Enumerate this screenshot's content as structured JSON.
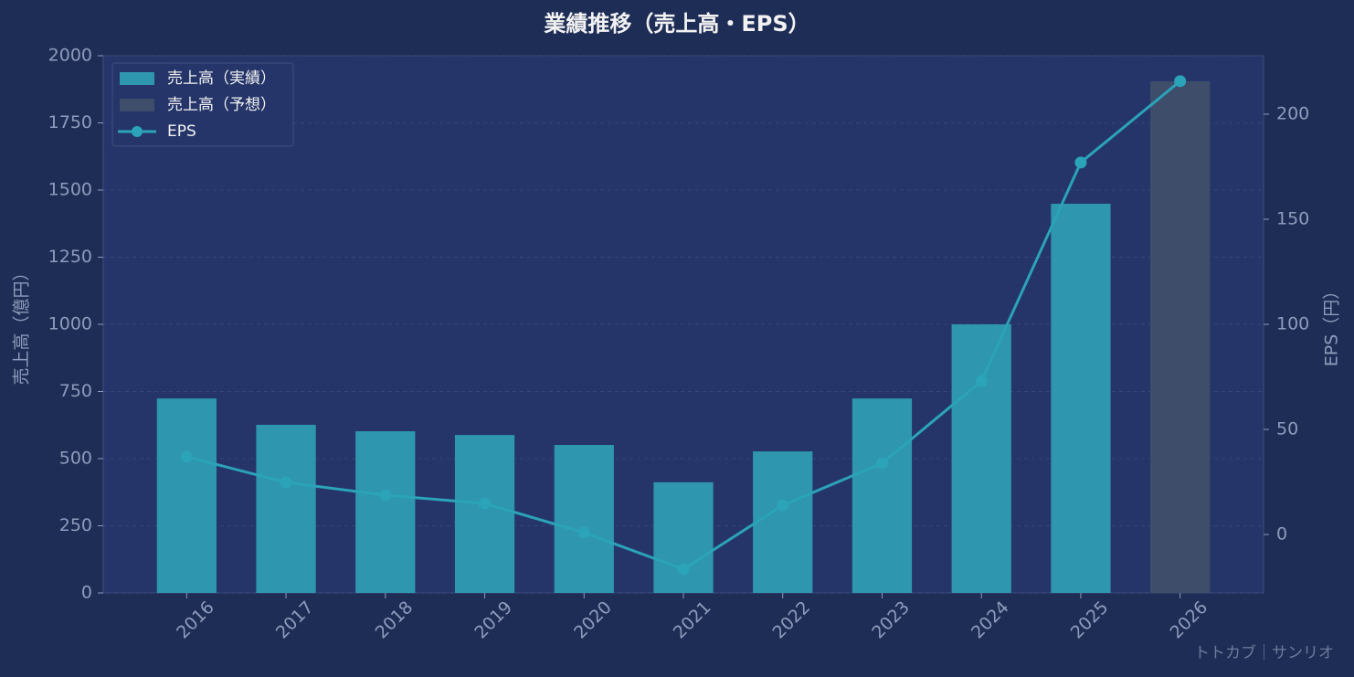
{
  "chart_data": {
    "type": "bar-line",
    "title": "業績推移（売上高・EPS）",
    "y_label": "売上高（億円）",
    "y2_label": "EPS（円）",
    "watermark": "トトカブ｜サンリオ",
    "categories": [
      "2016",
      "2017",
      "2018",
      "2019",
      "2020",
      "2021",
      "2022",
      "2023",
      "2024",
      "2025",
      "2026"
    ],
    "series": [
      {
        "name": "売上高（実績）",
        "type": "bar",
        "color": "#2e96ae",
        "values": [
          724,
          626,
          602,
          588,
          551,
          412,
          527,
          724,
          1000,
          1449,
          null
        ]
      },
      {
        "name": "売上高（予想）",
        "type": "bar",
        "color": "#3d4d6a",
        "values": [
          null,
          null,
          null,
          null,
          null,
          null,
          null,
          null,
          null,
          null,
          1905
        ]
      },
      {
        "name": "EPS",
        "type": "line",
        "axis": "y2",
        "color": "#2ba3b8",
        "values": [
          37,
          24.8,
          18.7,
          14.8,
          0.9,
          -16.5,
          13.9,
          33.9,
          73,
          177,
          215.7
        ]
      }
    ],
    "ylim": [
      0,
      2000
    ],
    "yticks": [
      0,
      250,
      500,
      750,
      1000,
      1250,
      1500,
      1750,
      2000
    ],
    "y2lim": [
      -27.8,
      227.8
    ],
    "y2ticks": [
      0,
      50,
      100,
      150,
      200
    ],
    "grid": true,
    "legend": "upper-left"
  }
}
